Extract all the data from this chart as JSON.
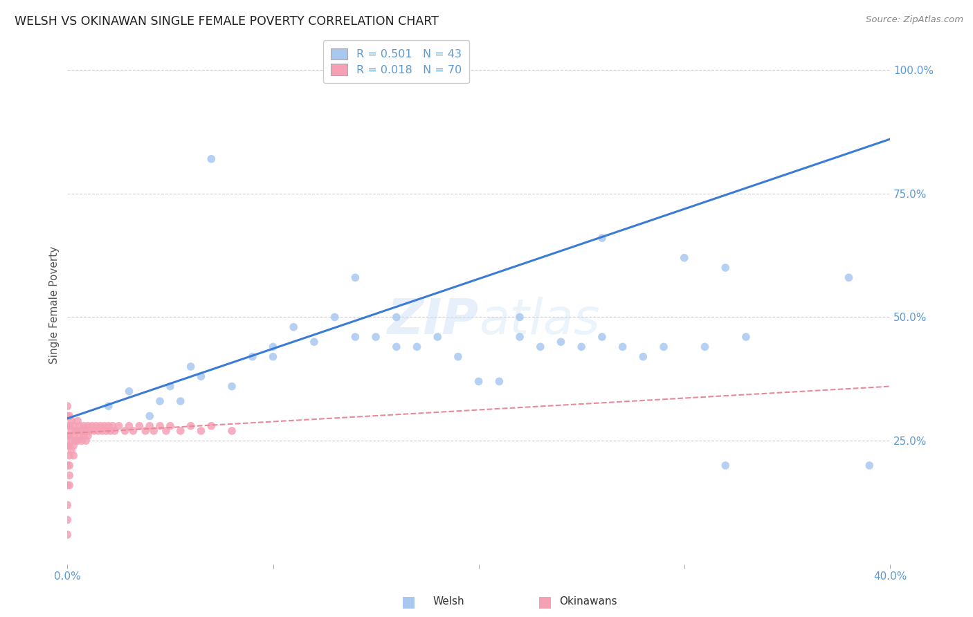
{
  "title": "WELSH VS OKINAWAN SINGLE FEMALE POVERTY CORRELATION CHART",
  "source": "Source: ZipAtlas.com",
  "ylabel": "Single Female Poverty",
  "xlim": [
    0.0,
    0.4
  ],
  "ylim": [
    0.0,
    1.05
  ],
  "watermark": "ZIPatlas",
  "legend_welsh_R": "R = 0.501",
  "legend_welsh_N": "N = 43",
  "legend_okinawan_R": "R = 0.018",
  "legend_okinawan_N": "N = 70",
  "welsh_color": "#a8c8f0",
  "okinawan_color": "#f5a0b5",
  "welsh_line_color": "#3a7bd5",
  "okinawan_line_color": "#e88898",
  "background_color": "#ffffff",
  "grid_color": "#cccccc",
  "welsh_x": [
    0.02,
    0.03,
    0.04,
    0.045,
    0.05,
    0.055,
    0.06,
    0.065,
    0.07,
    0.08,
    0.09,
    0.1,
    0.1,
    0.11,
    0.12,
    0.13,
    0.14,
    0.15,
    0.16,
    0.17,
    0.18,
    0.19,
    0.2,
    0.21,
    0.22,
    0.23,
    0.24,
    0.25,
    0.26,
    0.27,
    0.28,
    0.29,
    0.3,
    0.31,
    0.32,
    0.33,
    0.14,
    0.16,
    0.22,
    0.26,
    0.32,
    0.38,
    0.39
  ],
  "welsh_y": [
    0.32,
    0.35,
    0.3,
    0.33,
    0.36,
    0.33,
    0.4,
    0.38,
    0.82,
    0.36,
    0.42,
    0.42,
    0.44,
    0.48,
    0.45,
    0.5,
    0.46,
    0.46,
    0.44,
    0.44,
    0.46,
    0.42,
    0.37,
    0.37,
    0.46,
    0.44,
    0.45,
    0.44,
    0.46,
    0.44,
    0.42,
    0.44,
    0.62,
    0.44,
    0.6,
    0.46,
    0.58,
    0.5,
    0.5,
    0.66,
    0.2,
    0.58,
    0.2
  ],
  "okin_x": [
    0.0,
    0.0,
    0.0,
    0.0,
    0.0,
    0.0,
    0.0,
    0.0,
    0.0,
    0.0,
    0.001,
    0.001,
    0.001,
    0.001,
    0.001,
    0.001,
    0.001,
    0.001,
    0.002,
    0.002,
    0.002,
    0.002,
    0.003,
    0.003,
    0.003,
    0.003,
    0.004,
    0.004,
    0.005,
    0.005,
    0.005,
    0.006,
    0.006,
    0.007,
    0.007,
    0.008,
    0.008,
    0.009,
    0.009,
    0.01,
    0.01,
    0.011,
    0.012,
    0.013,
    0.014,
    0.015,
    0.016,
    0.017,
    0.018,
    0.019,
    0.02,
    0.021,
    0.022,
    0.023,
    0.025,
    0.028,
    0.03,
    0.032,
    0.035,
    0.038,
    0.04,
    0.042,
    0.045,
    0.048,
    0.05,
    0.055,
    0.06,
    0.065,
    0.07,
    0.08
  ],
  "okin_y": [
    0.28,
    0.3,
    0.26,
    0.32,
    0.24,
    0.2,
    0.16,
    0.12,
    0.09,
    0.06,
    0.3,
    0.28,
    0.26,
    0.24,
    0.22,
    0.2,
    0.18,
    0.16,
    0.29,
    0.27,
    0.25,
    0.23,
    0.28,
    0.26,
    0.24,
    0.22,
    0.27,
    0.25,
    0.29,
    0.27,
    0.25,
    0.28,
    0.26,
    0.27,
    0.25,
    0.28,
    0.26,
    0.27,
    0.25,
    0.28,
    0.26,
    0.27,
    0.28,
    0.27,
    0.28,
    0.27,
    0.28,
    0.27,
    0.28,
    0.27,
    0.28,
    0.27,
    0.28,
    0.27,
    0.28,
    0.27,
    0.28,
    0.27,
    0.28,
    0.27,
    0.28,
    0.27,
    0.28,
    0.27,
    0.28,
    0.27,
    0.28,
    0.27,
    0.28,
    0.27
  ],
  "welsh_line_x": [
    0.0,
    0.4
  ],
  "welsh_line_y": [
    0.295,
    0.86
  ],
  "okin_line_x": [
    0.0,
    0.4
  ],
  "okin_line_y": [
    0.265,
    0.36
  ]
}
